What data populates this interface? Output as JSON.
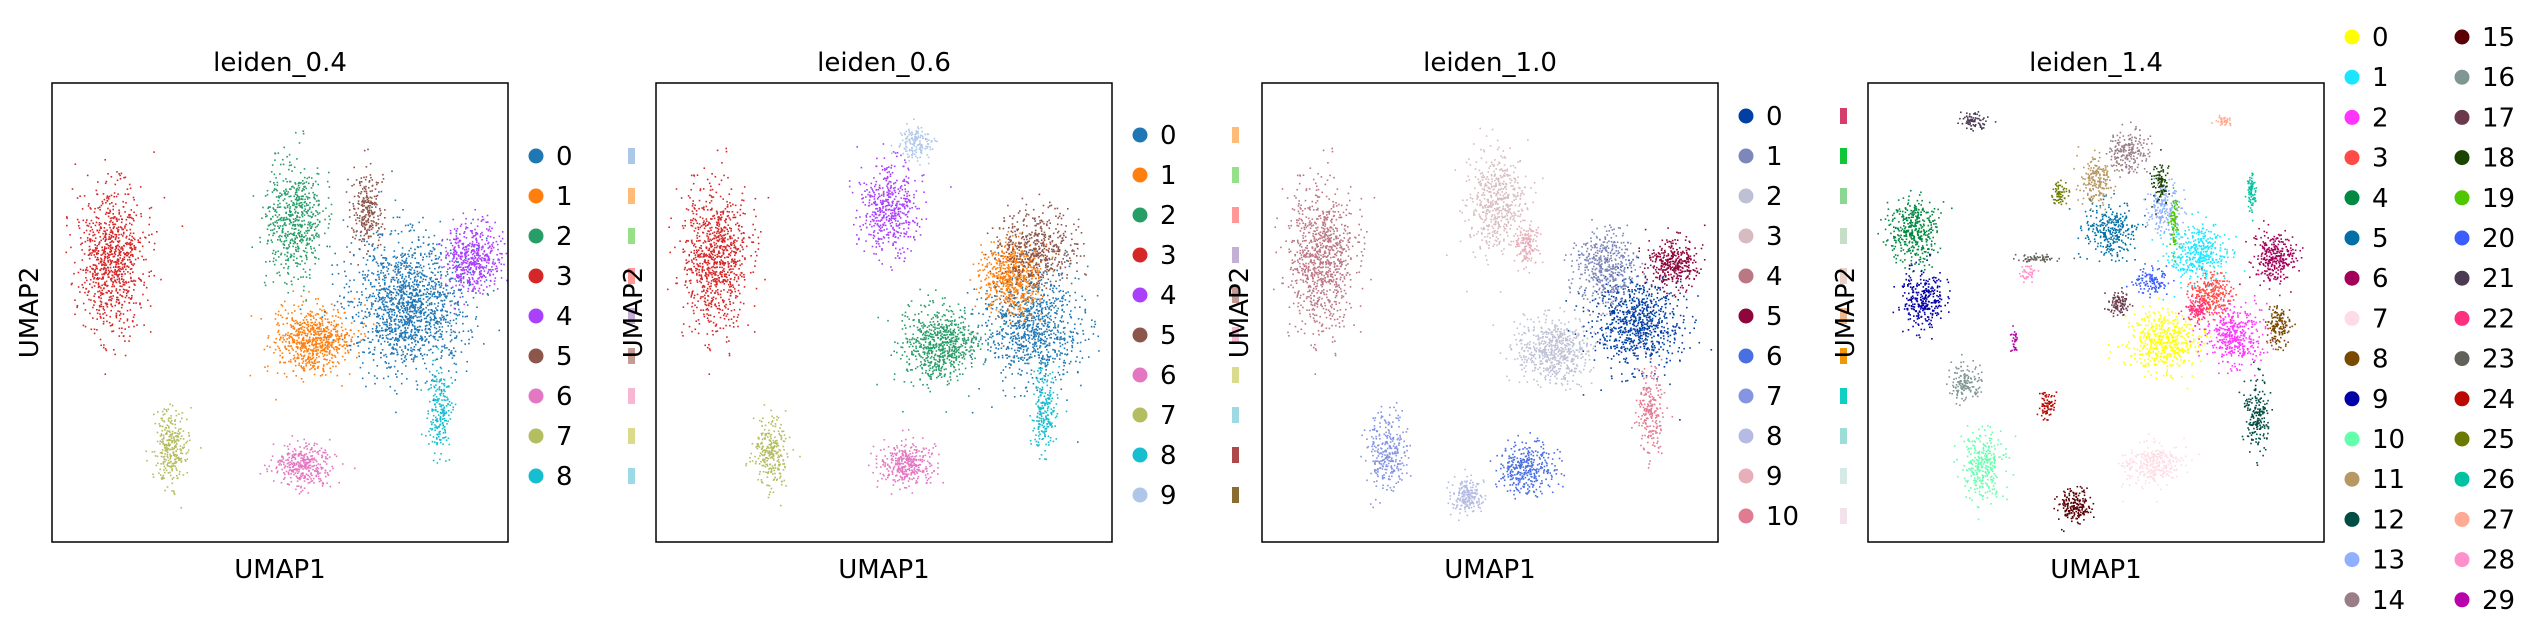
{
  "figure": {
    "panels": [
      {
        "title": "leiden_0.4",
        "xlabel": "UMAP1",
        "ylabel": "UMAP2",
        "legend": {
          "columns": [
            {
              "visible_labels": [
                "0",
                "1",
                "2",
                "3",
                "4",
                "5",
                "6",
                "7",
                "8"
              ],
              "clipped": false
            },
            {
              "visible_labels": [
                "",
                "",
                "",
                "",
                "",
                "",
                "",
                "",
                ""
              ],
              "clipped": true
            }
          ],
          "colors": [
            "#1f77b4",
            "#ff7f0e",
            "#279e68",
            "#d62728",
            "#aa40fc",
            "#8c564b",
            "#e377c2",
            "#b5bd61",
            "#17becf"
          ],
          "colors_col2": [
            "#aec7e8",
            "#ffbb78",
            "#98df8a",
            "#ff9896",
            "#c5b0d5",
            "#c49c94",
            "#f7b6d2",
            "#dbdb8d",
            "#9edae5"
          ]
        }
      },
      {
        "title": "leiden_0.6",
        "xlabel": "UMAP1",
        "ylabel": "UMAP2",
        "legend": {
          "columns": [
            {
              "visible_labels": [
                "0",
                "1",
                "2",
                "3",
                "4",
                "5",
                "6",
                "7",
                "8",
                "9"
              ],
              "clipped": false
            },
            {
              "visible_labels": [
                "",
                "",
                "",
                "",
                "",
                "",
                "",
                "",
                "",
                ""
              ],
              "clipped": true
            }
          ],
          "colors": [
            "#1f77b4",
            "#ff7f0e",
            "#279e68",
            "#d62728",
            "#aa40fc",
            "#8c564b",
            "#e377c2",
            "#b5bd61",
            "#17becf",
            "#aec7e8"
          ],
          "colors_col2": [
            "#ffbb78",
            "#98df8a",
            "#ff9896",
            "#c5b0d5",
            "#c49c94",
            "#f7b6d2",
            "#dbdb8d",
            "#9edae5",
            "#ad494a",
            "#8c6d31"
          ]
        }
      },
      {
        "title": "leiden_1.0",
        "xlabel": "UMAP1",
        "ylabel": "UMAP2",
        "legend": {
          "columns": [
            {
              "visible_labels": [
                "0",
                "1",
                "2",
                "3",
                "4",
                "5",
                "6",
                "7",
                "8",
                "9",
                "10"
              ],
              "clipped": false
            },
            {
              "visible_labels": [
                "",
                "",
                "",
                "",
                "",
                "",
                "",
                "",
                "",
                "",
                ""
              ],
              "clipped": true
            }
          ],
          "colors": [
            "#023fa5",
            "#7d87b9",
            "#bec1d4",
            "#d6bcc0",
            "#bb7784",
            "#8e063b",
            "#4a6fe3",
            "#8595e1",
            "#b5bbe3",
            "#e6afb9",
            "#e07b91"
          ],
          "colors_col2": [
            "#d33f6a",
            "#11c638",
            "#8dd593",
            "#c6dec7",
            "#ead3c6",
            "#f0b98d",
            "#ef9708",
            "#0fcfc0",
            "#9cded6",
            "#d5eae7",
            "#f3e1eb"
          ]
        }
      },
      {
        "title": "leiden_1.4",
        "xlabel": "UMAP1",
        "ylabel": "UMAP2",
        "legend": {
          "columns": [
            {
              "visible_labels": [
                "0",
                "1",
                "2",
                "3",
                "4",
                "5",
                "6",
                "7",
                "8",
                "9",
                "10",
                "11",
                "12",
                "13",
                "14"
              ],
              "clipped": false
            },
            {
              "visible_labels": [
                "15",
                "16",
                "17",
                "18",
                "19",
                "20",
                "21",
                "22",
                "23",
                "24",
                "25",
                "26",
                "27",
                "28",
                "29"
              ],
              "clipped": false
            }
          ],
          "colors": [
            "#ffff00",
            "#1ce6ff",
            "#ff34ff",
            "#ff4a46",
            "#008941",
            "#006fa6",
            "#a30059",
            "#ffdbe5",
            "#7a4900",
            "#0000a6",
            "#63ffac",
            "#b79762",
            "#004d43",
            "#8fb0ff",
            "#997d87"
          ],
          "colors_col2": [
            "#5a0007",
            "#809693",
            "#6a3a4c",
            "#1b4400",
            "#4fc601",
            "#3b5dff",
            "#4a3b53",
            "#ff2f80",
            "#61615a",
            "#ba0900",
            "#6b7900",
            "#00c2a0",
            "#ffaa92",
            "#ff90c9",
            "#b903aa"
          ]
        }
      }
    ]
  },
  "chart_data": [
    {
      "type": "scatter",
      "title": "leiden_0.4",
      "xlabel": "UMAP1",
      "ylabel": "UMAP2",
      "grid": false,
      "legend_placement": "right",
      "series_names": [
        "0",
        "1",
        "2",
        "3",
        "4",
        "5",
        "6",
        "7",
        "8"
      ],
      "clusters": [
        {
          "name": "0",
          "cx": 0.78,
          "cy": 0.48,
          "rx": 0.14,
          "ry": 0.16,
          "n": 1500
        },
        {
          "name": "1",
          "cx": 0.57,
          "cy": 0.56,
          "rx": 0.09,
          "ry": 0.08,
          "n": 700
        },
        {
          "name": "2",
          "cx": 0.53,
          "cy": 0.3,
          "rx": 0.07,
          "ry": 0.14,
          "n": 600
        },
        {
          "name": "3",
          "cx": 0.13,
          "cy": 0.38,
          "rx": 0.08,
          "ry": 0.17,
          "n": 900
        },
        {
          "name": "4",
          "cx": 0.92,
          "cy": 0.38,
          "rx": 0.07,
          "ry": 0.08,
          "n": 500
        },
        {
          "name": "5",
          "cx": 0.69,
          "cy": 0.28,
          "rx": 0.04,
          "ry": 0.09,
          "n": 250
        },
        {
          "name": "6",
          "cx": 0.55,
          "cy": 0.83,
          "rx": 0.07,
          "ry": 0.05,
          "n": 350
        },
        {
          "name": "7",
          "cx": 0.26,
          "cy": 0.79,
          "rx": 0.04,
          "ry": 0.09,
          "n": 300
        },
        {
          "name": "8",
          "cx": 0.85,
          "cy": 0.71,
          "rx": 0.03,
          "ry": 0.1,
          "n": 220
        }
      ]
    },
    {
      "type": "scatter",
      "title": "leiden_0.6",
      "xlabel": "UMAP1",
      "ylabel": "UMAP2",
      "grid": false,
      "legend_placement": "right",
      "series_names": [
        "0",
        "1",
        "2",
        "3",
        "4",
        "5",
        "6",
        "7",
        "8",
        "9"
      ],
      "clusters": [
        {
          "name": "0",
          "cx": 0.82,
          "cy": 0.53,
          "rx": 0.12,
          "ry": 0.13,
          "n": 900
        },
        {
          "name": "1",
          "cx": 0.78,
          "cy": 0.42,
          "rx": 0.07,
          "ry": 0.09,
          "n": 600
        },
        {
          "name": "2",
          "cx": 0.62,
          "cy": 0.57,
          "rx": 0.09,
          "ry": 0.09,
          "n": 700
        },
        {
          "name": "3",
          "cx": 0.13,
          "cy": 0.38,
          "rx": 0.08,
          "ry": 0.17,
          "n": 900
        },
        {
          "name": "4",
          "cx": 0.51,
          "cy": 0.27,
          "rx": 0.07,
          "ry": 0.11,
          "n": 500
        },
        {
          "name": "5",
          "cx": 0.83,
          "cy": 0.36,
          "rx": 0.1,
          "ry": 0.09,
          "n": 500
        },
        {
          "name": "6",
          "cx": 0.55,
          "cy": 0.83,
          "rx": 0.07,
          "ry": 0.05,
          "n": 350
        },
        {
          "name": "7",
          "cx": 0.25,
          "cy": 0.8,
          "rx": 0.04,
          "ry": 0.08,
          "n": 280
        },
        {
          "name": "8",
          "cx": 0.85,
          "cy": 0.71,
          "rx": 0.03,
          "ry": 0.1,
          "n": 220
        },
        {
          "name": "9",
          "cx": 0.57,
          "cy": 0.13,
          "rx": 0.04,
          "ry": 0.04,
          "n": 150
        }
      ]
    },
    {
      "type": "scatter",
      "title": "leiden_1.0",
      "xlabel": "UMAP1",
      "ylabel": "UMAP2",
      "grid": false,
      "legend_placement": "right",
      "series_names": [
        "0",
        "1",
        "2",
        "3",
        "4",
        "5",
        "6",
        "7",
        "8",
        "9",
        "10"
      ],
      "clusters": [
        {
          "name": "0",
          "cx": 0.82,
          "cy": 0.52,
          "rx": 0.11,
          "ry": 0.11,
          "n": 800
        },
        {
          "name": "1",
          "cx": 0.75,
          "cy": 0.4,
          "rx": 0.07,
          "ry": 0.09,
          "n": 450
        },
        {
          "name": "2",
          "cx": 0.64,
          "cy": 0.58,
          "rx": 0.09,
          "ry": 0.08,
          "n": 600
        },
        {
          "name": "3",
          "cx": 0.51,
          "cy": 0.26,
          "rx": 0.07,
          "ry": 0.12,
          "n": 500
        },
        {
          "name": "4",
          "cx": 0.13,
          "cy": 0.38,
          "rx": 0.08,
          "ry": 0.17,
          "n": 900
        },
        {
          "name": "5",
          "cx": 0.9,
          "cy": 0.39,
          "rx": 0.06,
          "ry": 0.06,
          "n": 350
        },
        {
          "name": "6",
          "cx": 0.58,
          "cy": 0.84,
          "rx": 0.07,
          "ry": 0.06,
          "n": 350
        },
        {
          "name": "7",
          "cx": 0.27,
          "cy": 0.8,
          "rx": 0.05,
          "ry": 0.09,
          "n": 300
        },
        {
          "name": "8",
          "cx": 0.45,
          "cy": 0.9,
          "rx": 0.04,
          "ry": 0.04,
          "n": 200
        },
        {
          "name": "9",
          "cx": 0.58,
          "cy": 0.35,
          "rx": 0.03,
          "ry": 0.05,
          "n": 150
        },
        {
          "name": "10",
          "cx": 0.85,
          "cy": 0.71,
          "rx": 0.03,
          "ry": 0.1,
          "n": 220
        }
      ]
    },
    {
      "type": "scatter",
      "title": "leiden_1.4",
      "xlabel": "UMAP1",
      "ylabel": "UMAP2",
      "grid": false,
      "legend_placement": "right",
      "series_names": [
        "0",
        "1",
        "2",
        "3",
        "4",
        "5",
        "6",
        "7",
        "8",
        "9",
        "10",
        "11",
        "12",
        "13",
        "14",
        "15",
        "16",
        "17",
        "18",
        "19",
        "20",
        "21",
        "22",
        "23",
        "24",
        "25",
        "26",
        "27",
        "28",
        "29"
      ],
      "clusters": [
        {
          "name": "0",
          "cx": 0.65,
          "cy": 0.56,
          "rx": 0.09,
          "ry": 0.07,
          "n": 500
        },
        {
          "name": "1",
          "cx": 0.72,
          "cy": 0.37,
          "rx": 0.07,
          "ry": 0.07,
          "n": 400
        },
        {
          "name": "2",
          "cx": 0.8,
          "cy": 0.55,
          "rx": 0.07,
          "ry": 0.07,
          "n": 400
        },
        {
          "name": "3",
          "cx": 0.75,
          "cy": 0.46,
          "rx": 0.05,
          "ry": 0.05,
          "n": 250
        },
        {
          "name": "4",
          "cx": 0.1,
          "cy": 0.32,
          "rx": 0.06,
          "ry": 0.08,
          "n": 400
        },
        {
          "name": "5",
          "cx": 0.53,
          "cy": 0.32,
          "rx": 0.06,
          "ry": 0.07,
          "n": 300
        },
        {
          "name": "6",
          "cx": 0.89,
          "cy": 0.38,
          "rx": 0.05,
          "ry": 0.06,
          "n": 300
        },
        {
          "name": "7",
          "cx": 0.62,
          "cy": 0.83,
          "rx": 0.07,
          "ry": 0.05,
          "n": 300
        },
        {
          "name": "8",
          "cx": 0.9,
          "cy": 0.53,
          "rx": 0.03,
          "ry": 0.05,
          "n": 150
        },
        {
          "name": "9",
          "cx": 0.12,
          "cy": 0.47,
          "rx": 0.05,
          "ry": 0.07,
          "n": 300
        },
        {
          "name": "10",
          "cx": 0.25,
          "cy": 0.83,
          "rx": 0.05,
          "ry": 0.08,
          "n": 300
        },
        {
          "name": "11",
          "cx": 0.5,
          "cy": 0.21,
          "rx": 0.04,
          "ry": 0.06,
          "n": 200
        },
        {
          "name": "12",
          "cx": 0.85,
          "cy": 0.72,
          "rx": 0.03,
          "ry": 0.09,
          "n": 200
        },
        {
          "name": "13",
          "cx": 0.65,
          "cy": 0.27,
          "rx": 0.04,
          "ry": 0.06,
          "n": 180
        },
        {
          "name": "14",
          "cx": 0.57,
          "cy": 0.15,
          "rx": 0.05,
          "ry": 0.05,
          "n": 200
        },
        {
          "name": "15",
          "cx": 0.45,
          "cy": 0.92,
          "rx": 0.04,
          "ry": 0.04,
          "n": 200
        },
        {
          "name": "16",
          "cx": 0.21,
          "cy": 0.65,
          "rx": 0.04,
          "ry": 0.04,
          "n": 150
        },
        {
          "name": "17",
          "cx": 0.55,
          "cy": 0.48,
          "rx": 0.03,
          "ry": 0.03,
          "n": 100
        },
        {
          "name": "18",
          "cx": 0.64,
          "cy": 0.22,
          "rx": 0.02,
          "ry": 0.05,
          "n": 100
        },
        {
          "name": "19",
          "cx": 0.67,
          "cy": 0.3,
          "rx": 0.01,
          "ry": 0.07,
          "n": 80
        },
        {
          "name": "20",
          "cx": 0.62,
          "cy": 0.43,
          "rx": 0.04,
          "ry": 0.03,
          "n": 120
        },
        {
          "name": "21",
          "cx": 0.23,
          "cy": 0.08,
          "rx": 0.03,
          "ry": 0.02,
          "n": 80
        },
        {
          "name": "22",
          "cx": 0.72,
          "cy": 0.49,
          "rx": 0.03,
          "ry": 0.03,
          "n": 100
        },
        {
          "name": "23",
          "cx": 0.37,
          "cy": 0.38,
          "rx": 0.05,
          "ry": 0.01,
          "n": 60
        },
        {
          "name": "24",
          "cx": 0.39,
          "cy": 0.7,
          "rx": 0.02,
          "ry": 0.03,
          "n": 80
        },
        {
          "name": "25",
          "cx": 0.42,
          "cy": 0.24,
          "rx": 0.02,
          "ry": 0.03,
          "n": 60
        },
        {
          "name": "26",
          "cx": 0.84,
          "cy": 0.24,
          "rx": 0.01,
          "ry": 0.05,
          "n": 80
        },
        {
          "name": "27",
          "cx": 0.78,
          "cy": 0.08,
          "rx": 0.02,
          "ry": 0.01,
          "n": 40
        },
        {
          "name": "28",
          "cx": 0.35,
          "cy": 0.41,
          "rx": 0.02,
          "ry": 0.02,
          "n": 40
        },
        {
          "name": "29",
          "cx": 0.32,
          "cy": 0.56,
          "rx": 0.01,
          "ry": 0.03,
          "n": 30
        }
      ]
    }
  ]
}
